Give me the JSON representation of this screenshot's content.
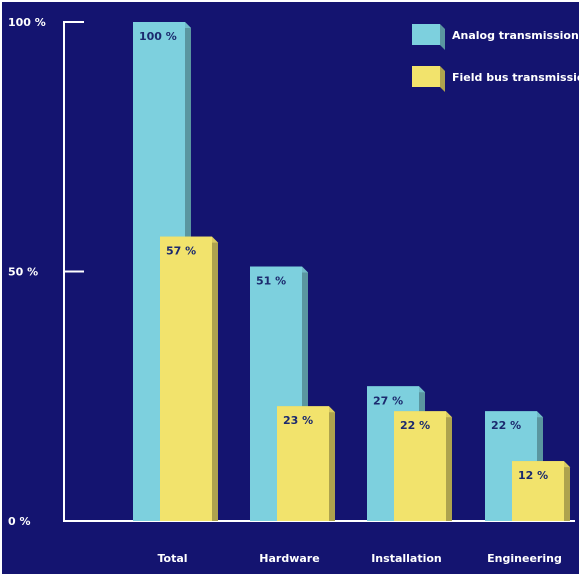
{
  "chart_data": {
    "type": "bar",
    "title": "",
    "xlabel": "",
    "ylabel": "",
    "categories": [
      "Total",
      "Hardware",
      "Installation",
      "Engineering"
    ],
    "series": [
      {
        "name": "Analog transmission",
        "values": [
          100,
          51,
          27,
          22
        ],
        "labels": [
          "100 %",
          "51 %",
          "27 %",
          "22 %"
        ],
        "color": "#7dd0de"
      },
      {
        "name": "Field bus transmission",
        "values": [
          57,
          23,
          22,
          12
        ],
        "labels": [
          "57 %",
          "23 %",
          "22 %",
          "12 %"
        ],
        "color": "#f2e36c"
      }
    ],
    "yticks": [
      {
        "value": 0,
        "label": "0 %"
      },
      {
        "value": 50,
        "label": "50 %"
      },
      {
        "value": 100,
        "label": "100 %"
      }
    ],
    "ylim": [
      0,
      100
    ],
    "grid": false,
    "legend_position": "top-right",
    "background_color": "#141470",
    "axis_color": "#ffffff",
    "label_color": "#1c2a6e"
  }
}
